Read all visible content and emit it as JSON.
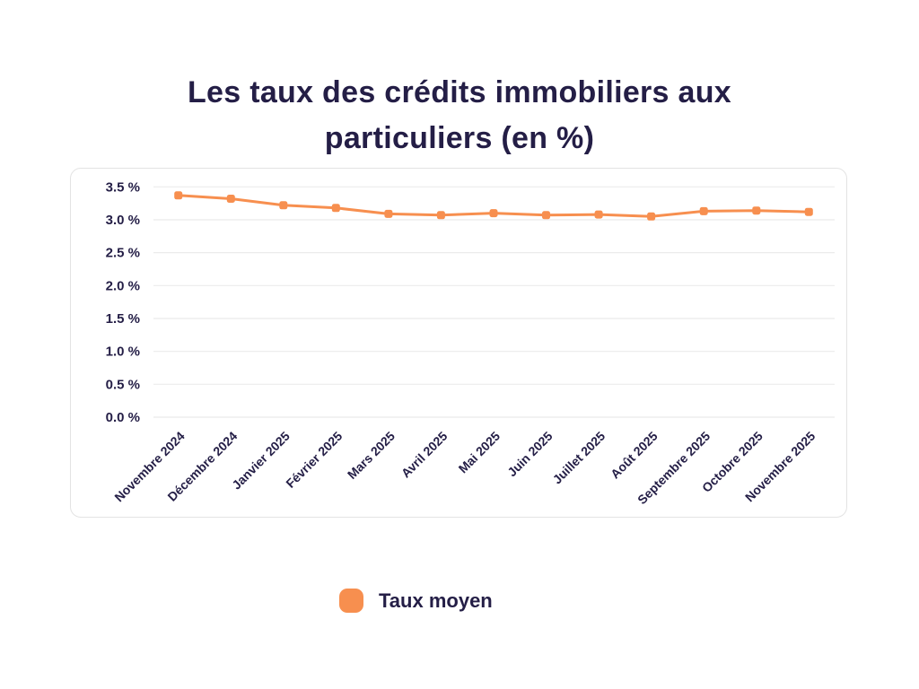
{
  "colors": {
    "accent_orange": "#f78f4f",
    "text_navy": "#241e46",
    "gridline": "#ebebeb",
    "card_border": "#e3e3e3",
    "background": "#ffffff"
  },
  "chart_data": {
    "type": "line",
    "title": "Les taux des crédits immobiliers aux particuliers (en %)",
    "categories": [
      "Novembre 2024",
      "Décembre 2024",
      "Janvier 2025",
      "Février 2025",
      "Mars 2025",
      "Avril 2025",
      "Mai 2025",
      "Juin 2025",
      "Juillet 2025",
      "Août 2025",
      "Septembre 2025",
      "Octobre 2025",
      "Novembre 2025"
    ],
    "series": [
      {
        "name": "Taux moyen",
        "color": "#f78f4f",
        "values": [
          3.37,
          3.32,
          3.22,
          3.18,
          3.09,
          3.07,
          3.1,
          3.07,
          3.08,
          3.05,
          3.13,
          3.14,
          3.12
        ]
      }
    ],
    "xlabel": "",
    "ylabel": "",
    "ylim": [
      0,
      3.5
    ],
    "yticks": [
      {
        "value": 0.0,
        "label": "0.0 %"
      },
      {
        "value": 0.5,
        "label": "0.5 %"
      },
      {
        "value": 1.0,
        "label": "1.0 %"
      },
      {
        "value": 1.5,
        "label": "1.5 %"
      },
      {
        "value": 2.0,
        "label": "2.0 %"
      },
      {
        "value": 2.5,
        "label": "2.5 %"
      },
      {
        "value": 3.0,
        "label": "3.0 %"
      },
      {
        "value": 3.5,
        "label": "3.5 %"
      }
    ],
    "grid": true,
    "legend_position": "bottom"
  }
}
